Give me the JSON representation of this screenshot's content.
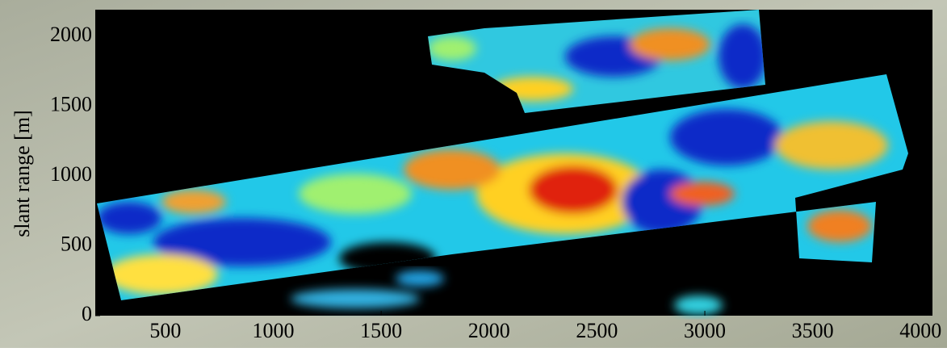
{
  "chart_data": {
    "type": "heatmap",
    "ylabel": "slant range [m]",
    "xlim": [
      175,
      4055
    ],
    "xticks": [
      500,
      1000,
      1500,
      2000,
      2500,
      3000,
      3500,
      4000
    ],
    "ylim": [
      0,
      2190
    ],
    "yticks": [
      0,
      500,
      1000,
      1500,
      2000
    ]
  }
}
